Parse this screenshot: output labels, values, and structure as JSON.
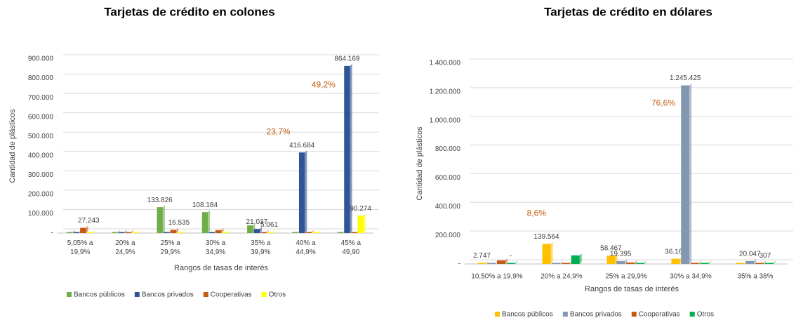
{
  "chart_data": [
    {
      "type": "bar",
      "title": "Tarjetas de crédito en colones",
      "ylabel": "Cantidad de plásticos",
      "xlabel": "Rangos de tasas de interés",
      "categories": [
        "5,05% a 19,9%",
        "20% a 24,9%",
        "25% a 29,9%",
        "30% a 34,9%",
        "35% a 39,9%",
        "40% a 44,9%",
        "45% a 49,90"
      ],
      "series": [
        {
          "name": "Bancos públicos",
          "color": "#70ad47",
          "values": [
            1000,
            1000,
            133826,
            108184,
            40000,
            1000,
            1000
          ],
          "value_labels": [
            null,
            null,
            "133.826",
            "108.184",
            null,
            null,
            null
          ]
        },
        {
          "name": "Bancos privados",
          "color": "#2f5597",
          "values": [
            2000,
            1000,
            2000,
            1000,
            21037,
            416684,
            864169
          ],
          "value_labels": [
            null,
            null,
            null,
            null,
            "21.037",
            "416.684",
            "864.169"
          ]
        },
        {
          "name": "Cooperativas",
          "color": "#c55a11",
          "values": [
            27243,
            1000,
            16535,
            15000,
            5061,
            2000,
            2000
          ],
          "value_labels": [
            "27.243",
            null,
            "16.535",
            null,
            "5.061",
            null,
            null
          ]
        },
        {
          "name": "Otros",
          "color": "#ffff00",
          "values": [
            1000,
            1000,
            1000,
            1000,
            3000,
            3000,
            90274
          ],
          "value_labels": [
            null,
            null,
            null,
            null,
            null,
            null,
            "90.274"
          ]
        }
      ],
      "annotations": [
        "23,7%",
        "49,2%"
      ],
      "ylim": [
        0,
        900000
      ],
      "yticks": [
        {
          "value": 0,
          "label": "-"
        },
        {
          "value": 100000,
          "label": "100.000"
        },
        {
          "value": 200000,
          "label": "200.000"
        },
        {
          "value": 300000,
          "label": "300.000"
        },
        {
          "value": 400000,
          "label": "400.000"
        },
        {
          "value": 500000,
          "label": "500.000"
        },
        {
          "value": 600000,
          "label": "600.000"
        },
        {
          "value": 700000,
          "label": "700.000"
        },
        {
          "value": 800000,
          "label": "800.000"
        },
        {
          "value": 900000,
          "label": "900.000"
        }
      ],
      "grid": true,
      "legend": "bottom"
    },
    {
      "type": "bar",
      "title": "Tarjetas de crédito en dólares",
      "ylabel": "Cantidad de plásticos",
      "xlabel": "Rangos de tasas de interés",
      "categories": [
        "10,50% a 19,9%",
        "20% a 24,9%",
        "25% a 29,9%",
        "30% a 34,9%",
        "35% a 38%"
      ],
      "series": [
        {
          "name": "Bancos públicos",
          "color": "#ffc000",
          "values": [
            2747,
            139564,
            58467,
            36165,
            2000
          ],
          "value_labels": [
            "2.747",
            "139.564",
            "58.467",
            "36.165",
            null
          ]
        },
        {
          "name": "Bancos privados",
          "color": "#8497b0",
          "values": [
            3000,
            3000,
            19395,
            1245425,
            20047
          ],
          "value_labels": [
            null,
            null,
            "19.395",
            "1.245.425",
            "20.047"
          ]
        },
        {
          "name": "Cooperativas",
          "color": "#c55a11",
          "values": [
            25000,
            5000,
            10000,
            3000,
            307
          ],
          "value_labels": [
            null,
            null,
            null,
            null,
            "307"
          ]
        },
        {
          "name": "Otros",
          "color": "#00b050",
          "values": [
            0,
            60000,
            2000,
            2000,
            3000
          ],
          "value_labels": [
            "-",
            null,
            null,
            null,
            null
          ]
        }
      ],
      "annotations": [
        "8,6%",
        "76,6%"
      ],
      "ylim": [
        0,
        1400000
      ],
      "yticks": [
        {
          "value": 0,
          "label": "-"
        },
        {
          "value": 200000,
          "label": "200.000"
        },
        {
          "value": 400000,
          "label": "400.000"
        },
        {
          "value": 600000,
          "label": "600.000"
        },
        {
          "value": 800000,
          "label": "800.000"
        },
        {
          "value": 1000000,
          "label": "1.000.000"
        },
        {
          "value": 1200000,
          "label": "1.200.000"
        },
        {
          "value": 1400000,
          "label": "1.400.000"
        }
      ],
      "grid": true,
      "legend": "bottom"
    }
  ]
}
